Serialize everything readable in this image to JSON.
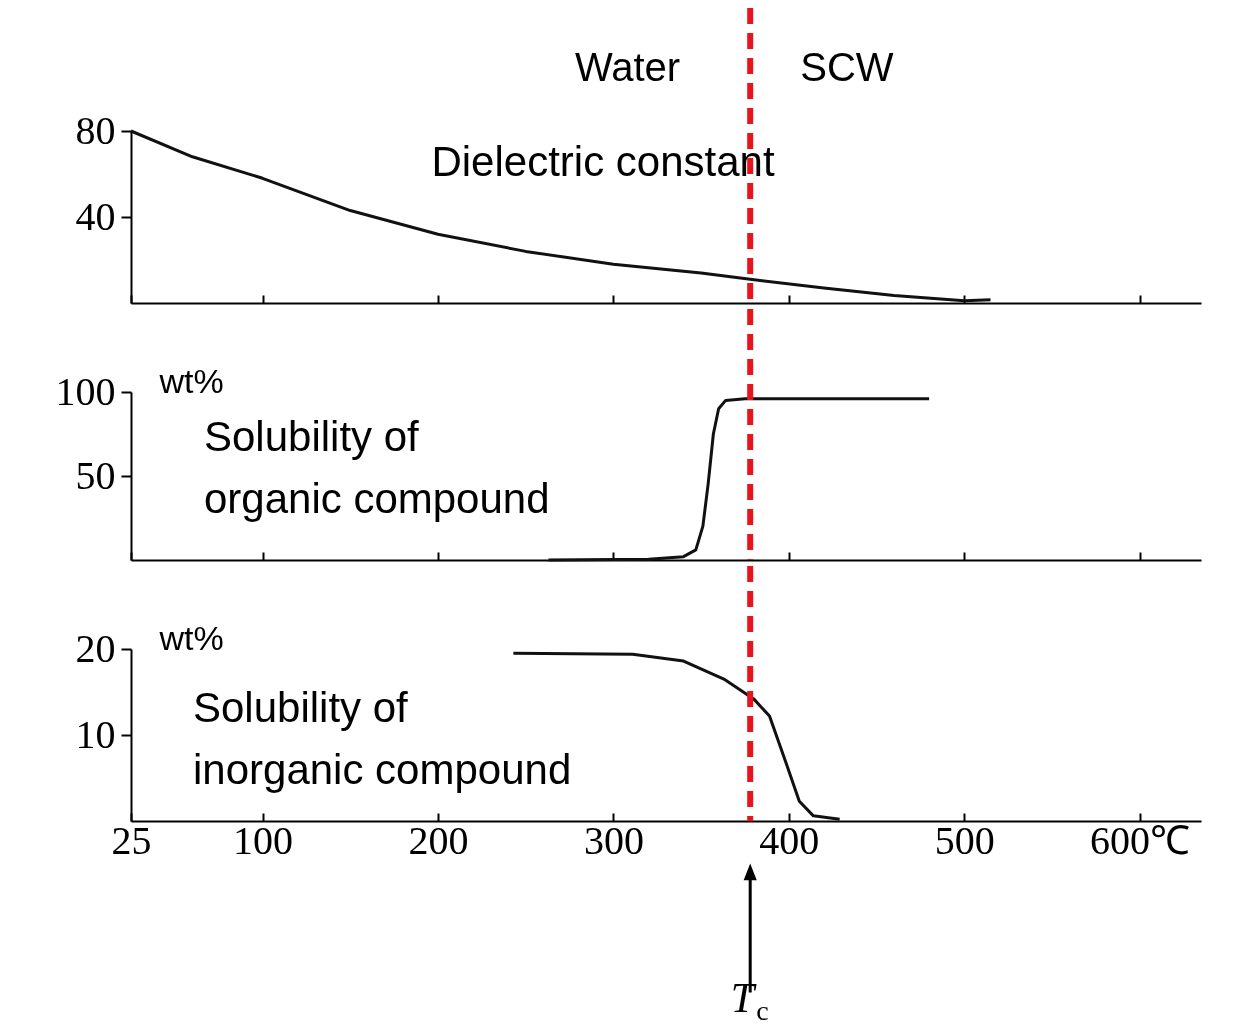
{
  "chart_data": [
    {
      "type": "line",
      "title": "Dielectric constant",
      "xlim": [
        25,
        635
      ],
      "xticks": [
        25,
        100,
        200,
        300,
        400,
        500,
        600
      ],
      "ylim": [
        0,
        80
      ],
      "yticks": [
        40,
        80
      ],
      "tick_labels": "y",
      "series": [
        {
          "color": "#111111",
          "x": [
            25,
            60,
            100,
            150,
            200,
            250,
            300,
            350,
            378,
            420,
            460,
            500,
            515
          ],
          "values": [
            80,
            68,
            58,
            43,
            32,
            24,
            18,
            14,
            11,
            7,
            3.5,
            1,
            1.5
          ]
        }
      ],
      "ref_lines": [
        {
          "axis": "x",
          "value": 378,
          "color": "#e8141c",
          "line_style": "dashed"
        }
      ],
      "annotations": [
        "Water",
        "SCW"
      ]
    },
    {
      "type": "line",
      "title": "Solubility of\norganic compound",
      "ylabel": "wt%",
      "xlim": [
        25,
        635
      ],
      "xticks": [
        25,
        100,
        200,
        300,
        400,
        500,
        600
      ],
      "ylim": [
        0,
        100
      ],
      "yticks": [
        50,
        100
      ],
      "tick_labels": "y",
      "series": [
        {
          "color": "#111111",
          "x": [
            263,
            320,
            340,
            347,
            351,
            354,
            357,
            360,
            364,
            375,
            480
          ],
          "values": [
            0,
            0.5,
            2,
            6,
            20,
            45,
            75,
            90,
            95,
            96,
            96
          ]
        }
      ],
      "ref_lines": [
        {
          "axis": "x",
          "value": 378,
          "color": "#e8141c",
          "line_style": "dashed"
        }
      ]
    },
    {
      "type": "line",
      "title": "Solubility of\ninorganic compound",
      "ylabel": "wt%",
      "xlim": [
        25,
        635
      ],
      "xticks": [
        25,
        100,
        200,
        300,
        400,
        500,
        {
          "value": 600,
          "label": "600℃"
        }
      ],
      "ylim": [
        0,
        20
      ],
      "yticks": [
        10,
        20
      ],
      "series": [
        {
          "color": "#111111",
          "x": [
            243,
            311,
            340,
            363,
            380,
            389,
            397,
            406,
            414,
            429
          ],
          "values": [
            19.5,
            19.4,
            18.6,
            16.5,
            14.2,
            12.2,
            7.6,
            2.3,
            0.6,
            0.2
          ]
        }
      ],
      "ref_lines": [
        {
          "axis": "x",
          "value": 378,
          "color": "#e8141c",
          "line_style": "dashed"
        }
      ],
      "annotations": [
        "T$_{c}$"
      ]
    }
  ]
}
